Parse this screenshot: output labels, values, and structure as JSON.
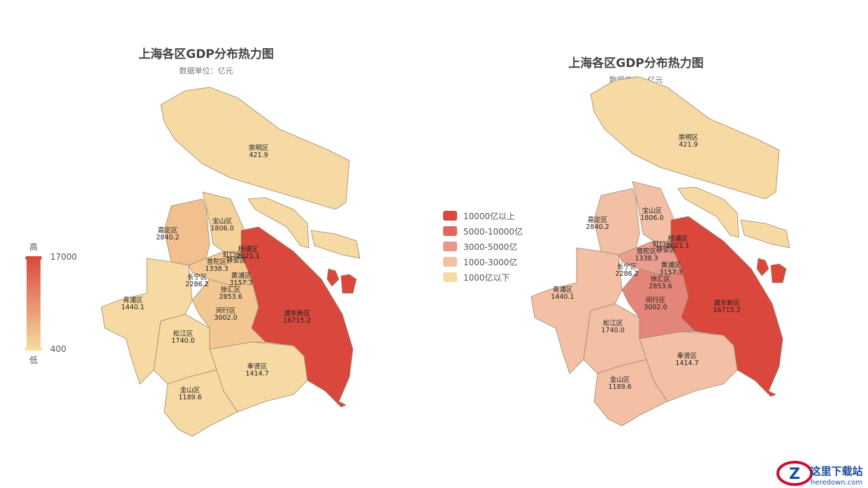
{
  "maps": [
    {
      "title": "上海各区GDP分布热力图",
      "subtitle": "数据单位：亿元",
      "legend_type": "continuous"
    },
    {
      "title": "上海各区GDP分布热力图",
      "subtitle": "数据单位：亿元",
      "legend_type": "piecewise"
    }
  ],
  "visual_map": {
    "high_label": "高",
    "low_label": "低",
    "max": "17000",
    "min": "400",
    "color_high": "#d9473d",
    "color_low": "#f5dc9e"
  },
  "pieces": [
    {
      "label": "10000亿以上",
      "color": "#d9473d"
    },
    {
      "label": "5000-10000亿",
      "color": "#de6a5f"
    },
    {
      "label": "3000-5000亿",
      "color": "#e8958a"
    },
    {
      "label": "1000-3000亿",
      "color": "#f3c0a6"
    },
    {
      "label": "1000亿以下",
      "color": "#f6d9a3"
    }
  ],
  "districts": [
    {
      "name": "崇明区",
      "value": "421.9"
    },
    {
      "name": "宝山区",
      "value": "1806.0"
    },
    {
      "name": "嘉定区",
      "value": "2840.2"
    },
    {
      "name": "杨浦区",
      "value": "2021.1"
    },
    {
      "name": "虹口区",
      "value": ""
    },
    {
      "name": "静安区",
      "value": ""
    },
    {
      "name": "普陀区",
      "value": "1338.3"
    },
    {
      "name": "长宁区",
      "value": "2286.2"
    },
    {
      "name": "黄浦区",
      "value": "3157.3"
    },
    {
      "name": "徐汇区",
      "value": "2853.6"
    },
    {
      "name": "青浦区",
      "value": "1440.1"
    },
    {
      "name": "闵行区",
      "value": "3002.0"
    },
    {
      "name": "浦东新区",
      "value": "16715.2"
    },
    {
      "name": "松江区",
      "value": "1740.0"
    },
    {
      "name": "奉贤区",
      "value": "1414.7"
    },
    {
      "name": "金山区",
      "value": "1189.6"
    }
  ],
  "watermark": {
    "text": "这里下载站",
    "url_text": "heredown.com"
  }
}
